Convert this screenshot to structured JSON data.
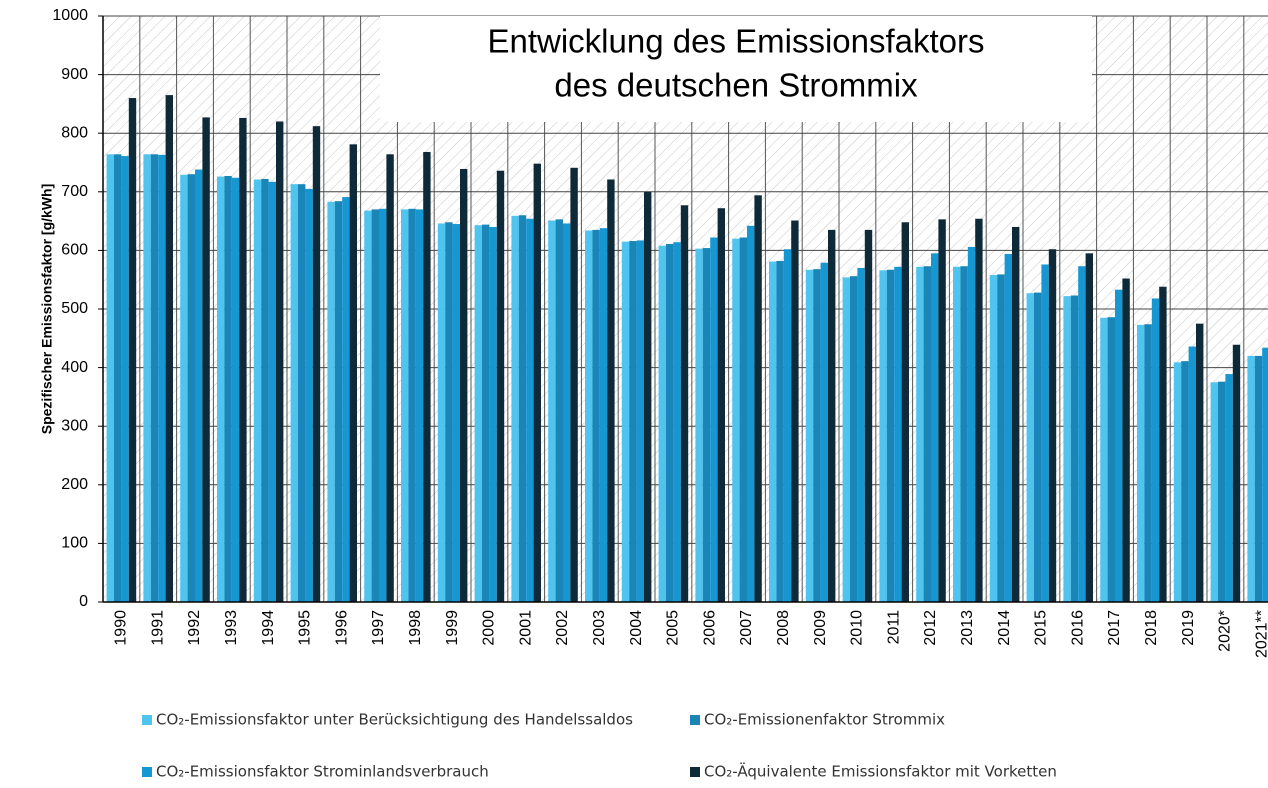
{
  "chart_data": {
    "type": "bar",
    "title": [
      "Entwicklung des Emissionsfaktors",
      "des deutschen Strommix"
    ],
    "y_label": "Spezifischer Emissionsfaktor  [g/kWh]",
    "categories": [
      "1990",
      "1991",
      "1992",
      "1993",
      "1994",
      "1995",
      "1996",
      "1997",
      "1998",
      "1999",
      "2000",
      "2001",
      "2002",
      "2003",
      "2004",
      "2005",
      "2006",
      "2007",
      "2008",
      "2009",
      "2010",
      "2011",
      "2012",
      "2013",
      "2014",
      "2015",
      "2016",
      "2017",
      "2018",
      "2019",
      "2020*",
      "2021**"
    ],
    "series": [
      {
        "name": "CO₂-Emissionsfaktor unter Berücksichtigung des Handelssaldos",
        "color": "#4fc4ef",
        "values": [
          764,
          764,
          729,
          726,
          721,
          713,
          683,
          668,
          670,
          646,
          643,
          659,
          651,
          634,
          615,
          608,
          603,
          620,
          581,
          567,
          554,
          566,
          572,
          572,
          558,
          527,
          522,
          485,
          473,
          409,
          375,
          420
        ]
      },
      {
        "name": "CO₂-Emissionenfaktor Strommix",
        "color": "#1a86b8",
        "values": [
          764,
          764,
          730,
          727,
          722,
          713,
          684,
          670,
          671,
          648,
          644,
          660,
          653,
          635,
          616,
          611,
          604,
          622,
          582,
          568,
          556,
          567,
          573,
          573,
          559,
          528,
          523,
          486,
          474,
          411,
          376,
          420
        ]
      },
      {
        "name": "CO₂-Emissionsfaktor Strominlandsverbrauch",
        "color": "#1797d2",
        "values": [
          761,
          763,
          738,
          724,
          717,
          705,
          691,
          671,
          670,
          645,
          640,
          654,
          646,
          638,
          617,
          614,
          622,
          642,
          602,
          579,
          570,
          572,
          595,
          606,
          594,
          576,
          573,
          533,
          518,
          436,
          389,
          434
        ]
      },
      {
        "name": "CO₂-Äquivalente  Emissionsfaktor mit Vorketten",
        "color": "#0e2a38",
        "values": [
          860,
          865,
          827,
          826,
          820,
          812,
          781,
          764,
          768,
          739,
          736,
          748,
          741,
          721,
          700,
          677,
          672,
          694,
          651,
          635,
          635,
          648,
          653,
          654,
          640,
          602,
          595,
          552,
          538,
          475,
          439,
          null
        ]
      }
    ],
    "ylim": [
      0,
      1000
    ],
    "yticks": [
      0,
      100,
      200,
      300,
      400,
      500,
      600,
      700,
      800,
      900,
      1000
    ],
    "grid": true
  }
}
